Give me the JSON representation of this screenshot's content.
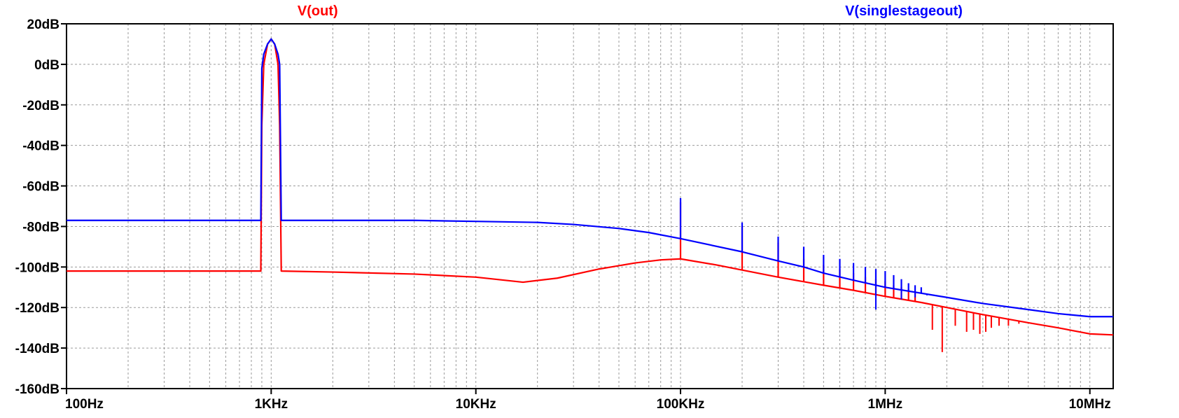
{
  "chart_data": {
    "type": "line",
    "title": "",
    "xlabel": "",
    "ylabel": "",
    "x_scale": "log",
    "xlim": [
      100,
      13000000
    ],
    "ylim": [
      -160,
      20
    ],
    "grid": true,
    "x_ticks": [
      {
        "value": 100,
        "label": "100Hz"
      },
      {
        "value": 1000,
        "label": "1KHz"
      },
      {
        "value": 10000,
        "label": "10KHz"
      },
      {
        "value": 100000,
        "label": "100KHz"
      },
      {
        "value": 1000000,
        "label": "1MHz"
      },
      {
        "value": 10000000,
        "label": "10MHz"
      }
    ],
    "y_ticks": [
      {
        "value": 20,
        "label": "20dB"
      },
      {
        "value": 0,
        "label": "0dB"
      },
      {
        "value": -20,
        "label": "-20dB"
      },
      {
        "value": -40,
        "label": "-40dB"
      },
      {
        "value": -60,
        "label": "-60dB"
      },
      {
        "value": -80,
        "label": "-80dB"
      },
      {
        "value": -100,
        "label": "-100dB"
      },
      {
        "value": -120,
        "label": "-120dB"
      },
      {
        "value": -140,
        "label": "-140dB"
      },
      {
        "value": -160,
        "label": "-160dB"
      }
    ],
    "series": [
      {
        "name": "V(singlestageout)",
        "color": "#0000ff",
        "points": [
          [
            100,
            -77
          ],
          [
            500,
            -77
          ],
          [
            890,
            -77
          ],
          [
            900,
            -2
          ],
          [
            920,
            5
          ],
          [
            960,
            10
          ],
          [
            1000,
            12.5
          ],
          [
            1040,
            10
          ],
          [
            1080,
            5
          ],
          [
            1100,
            0
          ],
          [
            1120,
            -77
          ],
          [
            5000,
            -77
          ],
          [
            10000,
            -77.5
          ],
          [
            20000,
            -78
          ],
          [
            30000,
            -79
          ],
          [
            50000,
            -81
          ],
          [
            70000,
            -83
          ],
          [
            100000,
            -86
          ],
          [
            200000,
            -92.5
          ],
          [
            300000,
            -97
          ],
          [
            400000,
            -100
          ],
          [
            500000,
            -103
          ],
          [
            700000,
            -106.5
          ],
          [
            1000000,
            -110
          ],
          [
            2000000,
            -115
          ],
          [
            3000000,
            -118
          ],
          [
            5000000,
            -121
          ],
          [
            7000000,
            -123
          ],
          [
            10000000,
            -124.5
          ],
          [
            13000000,
            -124.5
          ]
        ],
        "spikes": [
          [
            100000,
            -66
          ],
          [
            200000,
            -78
          ],
          [
            300000,
            -85
          ],
          [
            400000,
            -90
          ],
          [
            500000,
            -94
          ],
          [
            600000,
            -96
          ],
          [
            700000,
            -98
          ],
          [
            800000,
            -100
          ],
          [
            900000,
            -101
          ],
          [
            1000000,
            -102
          ],
          [
            1100000,
            -104
          ],
          [
            1200000,
            -106
          ],
          [
            1300000,
            -108
          ],
          [
            1400000,
            -109
          ],
          [
            1500000,
            -110
          ]
        ],
        "dips": [
          [
            900000,
            -121
          ],
          [
            1200000,
            -116
          ],
          [
            1400000,
            -115
          ],
          [
            1600000,
            -114
          ]
        ]
      },
      {
        "name": "V(out)",
        "color": "#ff0000",
        "points": [
          [
            100,
            -102
          ],
          [
            500,
            -102
          ],
          [
            890,
            -102
          ],
          [
            900,
            -30
          ],
          [
            920,
            0
          ],
          [
            960,
            10
          ],
          [
            1000,
            12.5
          ],
          [
            1040,
            10
          ],
          [
            1080,
            0
          ],
          [
            1100,
            -30
          ],
          [
            1120,
            -102
          ],
          [
            2000,
            -102.5
          ],
          [
            5000,
            -103.5
          ],
          [
            10000,
            -105
          ],
          [
            17000,
            -107.5
          ],
          [
            25000,
            -105.5
          ],
          [
            40000,
            -101
          ],
          [
            60000,
            -98
          ],
          [
            80000,
            -96.5
          ],
          [
            100000,
            -96
          ],
          [
            150000,
            -99
          ],
          [
            200000,
            -101.5
          ],
          [
            300000,
            -105
          ],
          [
            500000,
            -109
          ],
          [
            700000,
            -111.5
          ],
          [
            1000000,
            -114.5
          ],
          [
            1500000,
            -117.5
          ],
          [
            2000000,
            -120
          ],
          [
            3000000,
            -123.5
          ],
          [
            5000000,
            -127.5
          ],
          [
            7000000,
            -130
          ],
          [
            10000000,
            -133
          ],
          [
            13000000,
            -133.5
          ]
        ],
        "spikes": [
          [
            100000,
            -68
          ],
          [
            200000,
            -80
          ],
          [
            300000,
            -88
          ],
          [
            400000,
            -96
          ],
          [
            500000,
            -99
          ],
          [
            600000,
            -101
          ],
          [
            700000,
            -103
          ],
          [
            800000,
            -105
          ],
          [
            900000,
            -106
          ],
          [
            1000000,
            -107
          ],
          [
            1100000,
            -109
          ],
          [
            1200000,
            -110
          ],
          [
            1300000,
            -111
          ],
          [
            1400000,
            -112
          ]
        ],
        "dips": [
          [
            1700000,
            -131
          ],
          [
            1900000,
            -142
          ],
          [
            2200000,
            -129
          ],
          [
            2500000,
            -132
          ],
          [
            2700000,
            -131
          ],
          [
            2900000,
            -133
          ],
          [
            3100000,
            -132
          ],
          [
            3300000,
            -130
          ],
          [
            3600000,
            -129
          ],
          [
            4000000,
            -129
          ],
          [
            4500000,
            -128
          ]
        ]
      }
    ]
  }
}
